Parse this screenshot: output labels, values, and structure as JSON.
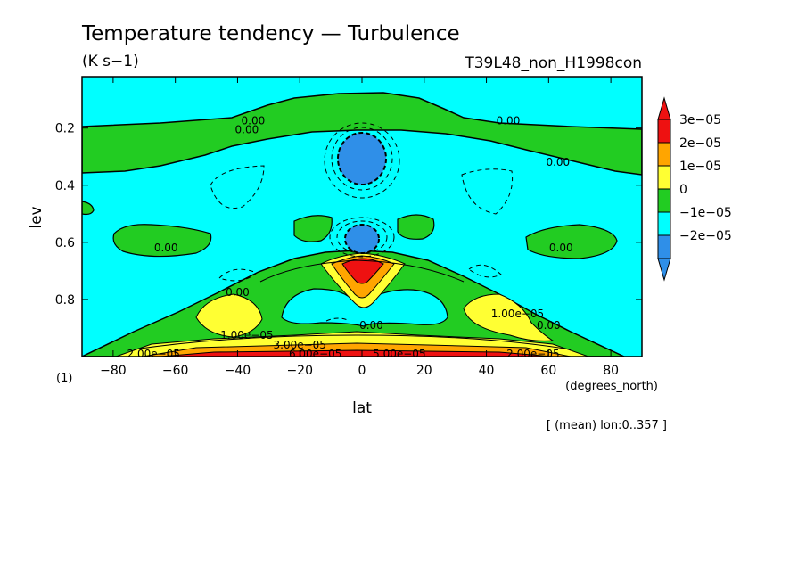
{
  "header": {
    "title": "Temperature tendency — Turbulence",
    "units": "(K s−1)",
    "experiment": "T39L48_non_H1998con"
  },
  "footer": {
    "mean_note": "[ (mean) lon:0..357 ]",
    "panel_index": "(1)"
  },
  "colors": {
    "c_neg2": "#2f8fe8",
    "c_neg1": "#00ffff",
    "c_0": "#22cc22",
    "c_1": "#ffff33",
    "c_2": "#ffa500",
    "c_3": "#ee1111",
    "lines": "#000000"
  },
  "chart_data": {
    "type": "heatmap",
    "title": "Temperature tendency — Turbulence",
    "xlabel": "lat",
    "xunits": "(degrees_north)",
    "ylabel": "lev",
    "xlim": [
      -90,
      90
    ],
    "ylim": [
      1.0,
      0.02
    ],
    "x_ticks": [
      -80,
      -60,
      -40,
      -20,
      0,
      20,
      40,
      60,
      80
    ],
    "x_tick_labels": [
      "−80",
      "−60",
      "−40",
      "−20",
      "0",
      "20",
      "40",
      "60",
      "80"
    ],
    "y_ticks": [
      0.2,
      0.4,
      0.6,
      0.8
    ],
    "y_tick_labels": [
      "0.2",
      "0.4",
      "0.6",
      "0.8"
    ],
    "colorbar": {
      "levels": [
        "3e−05",
        "2e−05",
        "1e−05",
        "0",
        "−1e−05",
        "−2e−05"
      ],
      "colors": [
        "#ee1111",
        "#ffa500",
        "#ffff33",
        "#22cc22",
        "#00ffff",
        "#2f8fe8"
      ]
    },
    "contour_labels": [
      {
        "text": "0.00",
        "lat": -35,
        "lev": 0.175
      },
      {
        "text": "0.00",
        "lat": -37,
        "lev": 0.205
      },
      {
        "text": "0.00",
        "lat": 47,
        "lev": 0.175
      },
      {
        "text": "0.00",
        "lat": 63,
        "lev": 0.32
      },
      {
        "text": "0.00",
        "lat": -63,
        "lev": 0.62
      },
      {
        "text": "0.00",
        "lat": 64,
        "lev": 0.62
      },
      {
        "text": "0.00",
        "lat": -40,
        "lev": 0.775
      },
      {
        "text": "0.00",
        "lat": 3,
        "lev": 0.89
      },
      {
        "text": "0.00",
        "lat": 60,
        "lev": 0.89
      },
      {
        "text": "1.00e−05",
        "lat": -37,
        "lev": 0.925
      },
      {
        "text": "1.00e−05",
        "lat": 50,
        "lev": 0.85
      },
      {
        "text": "2.00e−05",
        "lat": -67,
        "lev": 0.99
      },
      {
        "text": "2.00e−05",
        "lat": 55,
        "lev": 0.99
      },
      {
        "text": "3.00e−05",
        "lat": -20,
        "lev": 0.96
      },
      {
        "text": "6.00e−05",
        "lat": -15,
        "lev": 0.99
      },
      {
        "text": "5.00e−05",
        "lat": 12,
        "lev": 0.99
      }
    ]
  }
}
